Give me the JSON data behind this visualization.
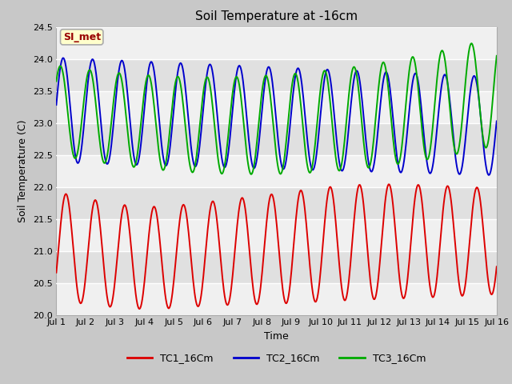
{
  "title": "Soil Temperature at -16cm",
  "xlabel": "Time",
  "ylabel": "Soil Temperature (C)",
  "xlim": [
    0,
    15
  ],
  "ylim": [
    20.0,
    24.5
  ],
  "yticks": [
    20.0,
    20.5,
    21.0,
    21.5,
    22.0,
    22.5,
    23.0,
    23.5,
    24.0,
    24.5
  ],
  "xtick_labels": [
    "Jul 1",
    "Jul 2",
    "Jul 3",
    "Jul 4",
    "Jul 5",
    "Jul 6",
    "Jul 7",
    "Jul 8",
    "Jul 9",
    "Jul 10",
    "Jul 11",
    "Jul 12",
    "Jul 13",
    "Jul 14",
    "Jul 15",
    "Jul 16"
  ],
  "annotation_text": "SI_met",
  "annotation_bg": "#ffffcc",
  "annotation_border": "#aaaaaa",
  "annotation_text_color": "#990000",
  "tc1_color": "#dd0000",
  "tc2_color": "#0000cc",
  "tc3_color": "#00aa00",
  "line_width": 1.4,
  "legend_labels": [
    "TC1_16Cm",
    "TC2_16Cm",
    "TC3_16Cm"
  ],
  "band_colors": [
    "#f0f0f0",
    "#e0e0e0"
  ]
}
